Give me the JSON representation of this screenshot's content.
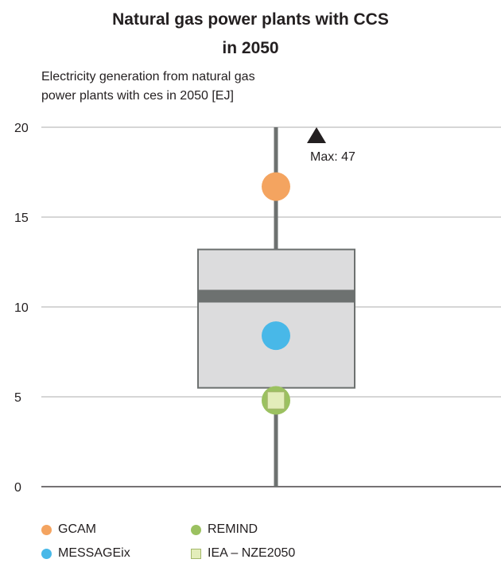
{
  "chart_data": {
    "type": "boxplot",
    "title_line1": "Natural gas power plants with CCS",
    "title_line2": "in 2050",
    "ylabel_line1": "Electricity generation from natural gas",
    "ylabel_line2": "power plants with ces in 2050 [EJ]",
    "ylim": [
      0,
      20
    ],
    "yticks": [
      0,
      5,
      10,
      15,
      20
    ],
    "grid": true,
    "box": {
      "min": 0,
      "q1": 5.5,
      "median": 10.6,
      "q3": 13.2,
      "whisker_top": 20,
      "max": 47,
      "max_label": "Max: 47"
    },
    "points": [
      {
        "name": "GCAM",
        "value": 16.7,
        "color": "#f4a460",
        "marker": "circle"
      },
      {
        "name": "MESSAGEix",
        "value": 8.4,
        "color": "#48b8e8",
        "marker": "circle"
      },
      {
        "name": "REMIND",
        "value": 4.8,
        "color": "#9bc160",
        "marker": "circle"
      },
      {
        "name": "IEA – NZE2050",
        "value": 4.8,
        "color": "#e3edba",
        "marker": "square"
      }
    ],
    "legend_placement": "bottom"
  },
  "colors": {
    "box_fill": "#dcdcdd",
    "box_stroke": "#6d7170",
    "median": "#6d7170",
    "whisker": "#6d7170",
    "grid": "#c8c8c8",
    "axis": "#231f20"
  }
}
